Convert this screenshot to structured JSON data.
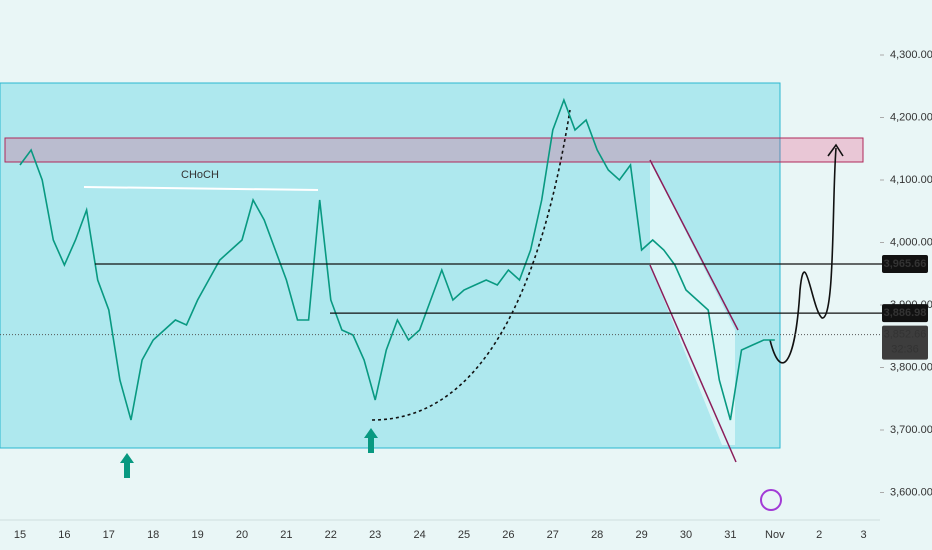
{
  "chart_data": {
    "type": "line",
    "annotations": [
      "CHoCH"
    ],
    "categories": [
      "15",
      null,
      null,
      null,
      "16",
      null,
      null,
      null,
      "17",
      null,
      null,
      null,
      "18",
      null,
      null,
      null,
      "19",
      null,
      null,
      null,
      "20",
      null,
      null,
      null,
      "21",
      null,
      null,
      null,
      "22",
      null,
      null,
      null,
      "23",
      null,
      null,
      null,
      "24",
      null,
      null,
      null,
      "25",
      null,
      null,
      null,
      "26",
      null,
      null,
      null,
      "27",
      null,
      null,
      null,
      "28",
      null,
      null,
      null,
      "29",
      null,
      null,
      null,
      "30",
      null,
      null,
      null,
      "31",
      null,
      null,
      null,
      "Nov",
      null,
      null,
      null,
      "2",
      null,
      null,
      null,
      "3"
    ],
    "values": [
      4124,
      4148,
      4100,
      4004,
      3964,
      4004,
      4052,
      3940,
      3892,
      3780,
      3716,
      3812,
      3844,
      3860,
      3876,
      3868,
      3908,
      3940,
      3972,
      3988,
      4004,
      4068,
      4036,
      3988,
      3940,
      3876,
      3876,
      4068,
      3908,
      3860,
      3852,
      3812,
      3748,
      3828,
      3876,
      3844,
      3860,
      3908,
      3956,
      3908,
      3924,
      3932,
      3940,
      3932,
      3956,
      3940,
      3988,
      4068,
      4180,
      4228,
      4180,
      4196,
      4148,
      4116,
      4100,
      4124,
      3988,
      4004,
      3988,
      3964,
      3924,
      3908,
      3892,
      3780,
      3716,
      3828,
      3836,
      3844,
      3844,
      null,
      null,
      null,
      null,
      null,
      null,
      null,
      null
    ],
    "color": "#089981",
    "ylim": [
      3556,
      4388
    ],
    "yticks": [
      {
        "value": 4300,
        "label": "4,300.00"
      },
      {
        "value": 4200,
        "label": "4,200.00"
      },
      {
        "value": 4100,
        "label": "4,100.00"
      },
      {
        "value": 4000,
        "label": "4,000.00"
      },
      {
        "value": 3900,
        "label": "3,900.00"
      },
      {
        "value": 3800,
        "label": "3,800.00"
      },
      {
        "value": 3700,
        "label": "3,700.00"
      },
      {
        "value": 3600,
        "label": "3,600.00"
      }
    ],
    "levels": [
      {
        "value": 3965.66,
        "label": "3,965.66"
      },
      {
        "value": 3886.98,
        "label": "3,886.98"
      }
    ],
    "last_price": {
      "value": 3852.66,
      "label": "3,852.66",
      "countdown": "32:36"
    }
  }
}
